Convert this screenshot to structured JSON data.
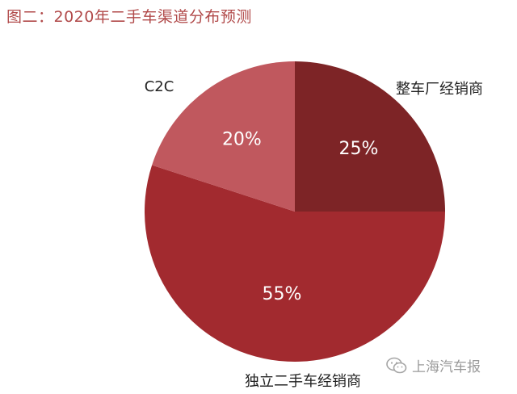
{
  "title": "图二：2020年二手车渠道分布预测",
  "watermark": "上海汽车报",
  "chart_data": {
    "type": "pie",
    "title": "图二：2020年二手车渠道分布预测",
    "slices": [
      {
        "label": "整车厂经销商",
        "value": 25,
        "pct_label": "25%",
        "color": "#7d2426"
      },
      {
        "label": "独立二手车经销商",
        "value": 55,
        "pct_label": "55%",
        "color": "#a22a2f"
      },
      {
        "label": "C2C",
        "value": 20,
        "pct_label": "20%",
        "color": "#c0585e"
      }
    ]
  }
}
